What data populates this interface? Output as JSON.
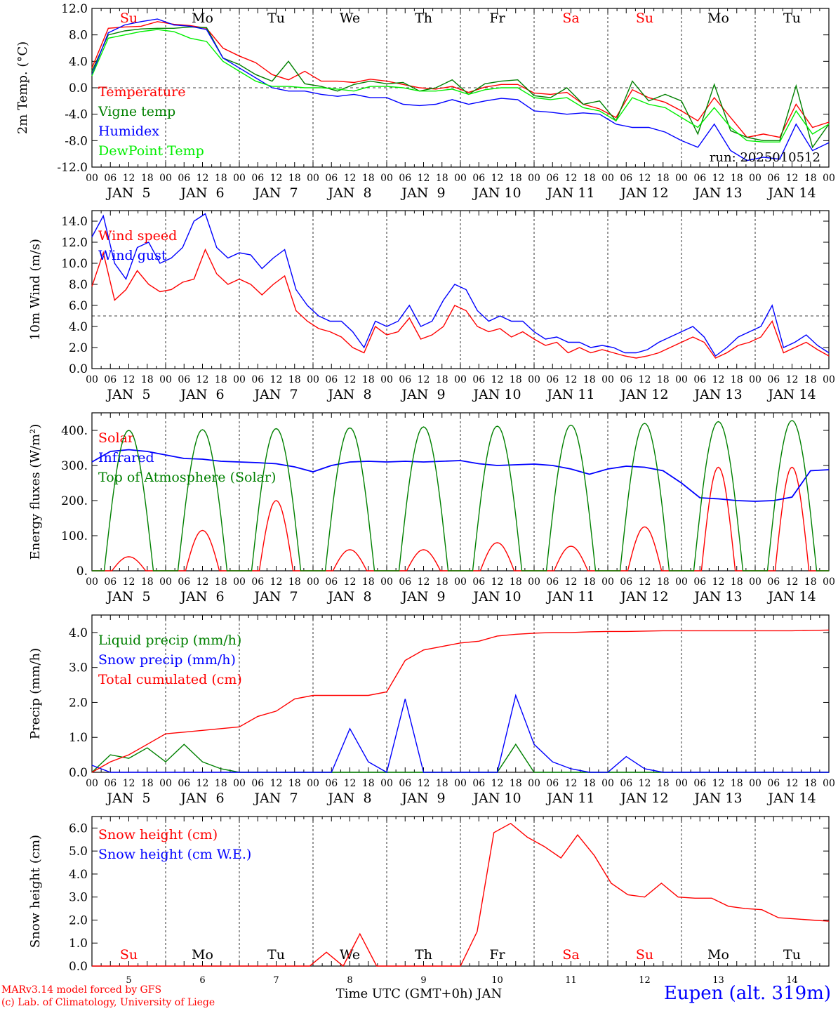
{
  "colors": {
    "red": "#ff0000",
    "green": "#008000",
    "blue": "#0000ff",
    "lime": "#00ee00",
    "black": "#000000"
  },
  "days_top": [
    "Su",
    "Mo",
    "Tu",
    "We",
    "Th",
    "Fr",
    "Sa",
    "Su",
    "Mo",
    "Tu"
  ],
  "days_top_colors": [
    "red",
    "black",
    "black",
    "black",
    "black",
    "black",
    "red",
    "red",
    "black",
    "black"
  ],
  "date_labels": [
    "JAN  5",
    "JAN  6",
    "JAN  7",
    "JAN  8",
    "JAN  9",
    "JAN 10",
    "JAN 11",
    "JAN 12",
    "JAN 13",
    "JAN 14"
  ],
  "hour_ticks": [
    "00",
    "06",
    "12",
    "18"
  ],
  "bottom_day_numbers": [
    "5",
    "6",
    "7",
    "8",
    "9",
    "10",
    "11",
    "12",
    "13",
    "14"
  ],
  "footer": {
    "credit1": "MARv3.14 model forced by GFS",
    "credit2": "(c) Lab. of Climatology, University of Liege",
    "x_title": "Time UTC (GMT+0h) JAN",
    "station": "Eupen (alt. 319m)"
  },
  "chart_data": [
    {
      "type": "line",
      "ylabel": "2m Temp. (°C)",
      "ylim": [
        -12,
        12
      ],
      "yticks": [
        "12.0",
        "8.0",
        "4.0",
        "0.0",
        "-4.0",
        "-8.0",
        "-12.0"
      ],
      "ref_line": 0,
      "run_label": "run: 2025010512",
      "x_hours_step": 6,
      "series": [
        {
          "name": "Temperature",
          "color": "red",
          "values": [
            3.0,
            9.0,
            9.2,
            9.3,
            10.0,
            9.6,
            9.4,
            9.0,
            6.0,
            4.8,
            3.8,
            2.0,
            1.2,
            2.5,
            1.0,
            1.0,
            0.8,
            1.3,
            1.0,
            0.5,
            0.0,
            -0.2,
            0.2,
            -0.7,
            0.1,
            0.5,
            0.5,
            -0.8,
            -1.0,
            -0.7,
            -2.5,
            -3.2,
            -4.5,
            -0.3,
            -1.5,
            -2.2,
            -3.5,
            -5.0,
            -1.5,
            -4.5,
            -7.5,
            -7.0,
            -7.5,
            -2.5,
            -6.0,
            -5.2
          ]
        },
        {
          "name": "Vigne temp",
          "color": "green",
          "values": [
            2.5,
            8.0,
            8.6,
            8.9,
            9.0,
            9.0,
            9.2,
            9.1,
            4.5,
            3.5,
            2.0,
            1.0,
            4.0,
            0.6,
            0.2,
            -0.5,
            0.5,
            1.0,
            0.6,
            0.8,
            -0.5,
            0.0,
            1.2,
            -1.0,
            0.6,
            1.0,
            1.2,
            -1.2,
            -1.5,
            0.0,
            -2.5,
            -2.0,
            -5.0,
            1.0,
            -2.0,
            -1.0,
            -2.0,
            -7.0,
            0.5,
            -6.5,
            -7.5,
            -8.0,
            -8.0,
            0.3,
            -9.0,
            -5.5
          ]
        },
        {
          "name": "Humidex",
          "color": "blue",
          "values": [
            2.0,
            8.3,
            9.5,
            10.0,
            10.4,
            9.5,
            9.3,
            8.8,
            4.5,
            3.0,
            1.5,
            0.0,
            -0.5,
            -0.5,
            -1.0,
            -1.3,
            -1.0,
            -1.5,
            -1.5,
            -2.5,
            -2.7,
            -2.5,
            -1.8,
            -2.5,
            -2.0,
            -1.6,
            -1.8,
            -3.5,
            -3.7,
            -4.0,
            -3.8,
            -4.0,
            -5.5,
            -6.0,
            -6.0,
            -6.7,
            -8.0,
            -9.0,
            -5.5,
            -9.5,
            -11.0,
            -10.5,
            -10.8,
            -5.5,
            -9.5,
            -8.3
          ]
        },
        {
          "name": "DewPoint Temp",
          "color": "lime",
          "values": [
            1.8,
            7.5,
            8.0,
            8.5,
            8.8,
            8.5,
            7.5,
            7.0,
            4.0,
            2.5,
            1.0,
            0.2,
            0.2,
            0.0,
            0.0,
            -0.2,
            -0.5,
            0.2,
            0.2,
            0.0,
            -0.5,
            -0.5,
            -0.2,
            -1.0,
            -0.3,
            0.0,
            0.0,
            -1.5,
            -1.8,
            -1.5,
            -3.0,
            -3.5,
            -5.0,
            -1.5,
            -2.5,
            -3.0,
            -4.5,
            -6.0,
            -3.0,
            -6.0,
            -8.0,
            -8.2,
            -8.2,
            -3.5,
            -7.0,
            -5.5
          ]
        }
      ]
    },
    {
      "type": "line",
      "ylabel": "10m Wind (m/s)",
      "ylim": [
        0,
        15
      ],
      "yticks": [
        "14.0",
        "12.0",
        "10.0",
        "8.0",
        "6.0",
        "4.0",
        "2.0",
        "0.0"
      ],
      "ref_line": 5,
      "x_hours_step": 6,
      "series": [
        {
          "name": "Wind speed",
          "color": "red",
          "values": [
            7.8,
            11.0,
            6.5,
            7.5,
            9.3,
            8.0,
            7.3,
            7.5,
            8.2,
            8.5,
            11.3,
            9.0,
            8.0,
            8.5,
            8.0,
            7.0,
            8.0,
            8.8,
            5.5,
            4.5,
            3.8,
            3.5,
            3.0,
            2.0,
            1.5,
            4.0,
            3.2,
            3.5,
            4.8,
            2.8,
            3.2,
            4.0,
            6.0,
            5.5,
            4.0,
            3.5,
            3.8,
            3.0,
            3.5,
            2.8,
            2.2,
            2.5,
            1.5,
            2.0,
            1.5,
            1.8,
            1.5,
            1.2,
            1.0,
            1.2,
            1.5,
            2.0,
            2.5,
            3.0,
            2.5,
            1.0,
            1.5,
            2.2,
            2.5,
            3.0,
            4.5,
            1.5,
            2.0,
            2.5,
            1.8,
            1.2
          ]
        },
        {
          "name": "Wind gust",
          "color": "blue",
          "values": [
            12.5,
            14.5,
            10.0,
            8.5,
            11.5,
            12.0,
            10.0,
            10.5,
            11.5,
            14.0,
            14.7,
            11.5,
            10.5,
            11.0,
            10.8,
            9.5,
            10.5,
            11.3,
            7.5,
            6.0,
            5.0,
            4.5,
            4.5,
            3.5,
            2.0,
            4.5,
            4.0,
            4.5,
            6.0,
            4.0,
            4.5,
            6.5,
            8.0,
            7.5,
            5.5,
            4.5,
            5.0,
            4.5,
            4.5,
            3.5,
            2.8,
            3.0,
            2.5,
            2.5,
            2.0,
            2.2,
            2.0,
            1.5,
            1.5,
            1.8,
            2.5,
            3.0,
            3.5,
            4.0,
            3.0,
            1.2,
            2.0,
            3.0,
            3.5,
            4.0,
            6.0,
            2.0,
            2.5,
            3.2,
            2.2,
            1.5
          ]
        }
      ]
    },
    {
      "type": "line",
      "ylabel": "Energy fluxes (W/m²)",
      "ylim": [
        0,
        450
      ],
      "yticks": [
        "400.",
        "300.",
        "200.",
        "100.",
        "0."
      ],
      "x_hours_step": 6,
      "series": [
        {
          "name": "Solar",
          "color": "red",
          "day_peaks": [
            40,
            115,
            200,
            60,
            60,
            80,
            70,
            125,
            295,
            295
          ]
        },
        {
          "name": "Infrared",
          "color": "blue",
          "values": [
            310,
            340,
            345,
            340,
            330,
            320,
            318,
            312,
            310,
            308,
            305,
            296,
            282,
            300,
            310,
            312,
            310,
            312,
            310,
            312,
            314,
            305,
            300,
            302,
            304,
            300,
            290,
            275,
            290,
            298,
            295,
            285,
            250,
            208,
            205,
            200,
            198,
            200,
            210,
            285,
            288
          ]
        },
        {
          "name": "Top of Atmosphere (Solar)",
          "color": "green",
          "day_peaks": [
            400,
            402,
            405,
            407,
            410,
            412,
            415,
            420,
            425,
            428
          ]
        }
      ]
    },
    {
      "type": "line",
      "ylabel": "Precip (mm/h)",
      "ylim": [
        0,
        4.5
      ],
      "yticks": [
        "4.0",
        "3.0",
        "2.0",
        "1.0",
        "0.0"
      ],
      "x_hours_step": 6,
      "series": [
        {
          "name": "Liquid precip (mm/h)",
          "color": "green",
          "values": [
            0,
            0.5,
            0.4,
            0.7,
            0.3,
            0.8,
            0.3,
            0.1,
            0,
            0,
            0,
            0,
            0,
            0,
            0,
            0,
            0,
            0,
            0,
            0,
            0,
            0,
            0,
            0.8,
            0,
            0,
            0,
            0,
            0,
            0,
            0,
            0,
            0,
            0,
            0,
            0,
            0,
            0,
            0,
            0,
            0
          ]
        },
        {
          "name": "Snow precip (mm/h)",
          "color": "blue",
          "values": [
            0.2,
            0,
            0,
            0,
            0,
            0,
            0,
            0,
            0,
            0,
            0,
            0,
            0,
            0,
            1.25,
            0.3,
            0,
            2.1,
            0,
            0,
            0,
            0,
            0,
            2.2,
            0.8,
            0.3,
            0.1,
            0,
            0,
            0.45,
            0.1,
            0,
            0,
            0,
            0,
            0,
            0,
            0,
            0,
            0,
            0
          ]
        },
        {
          "name": "Total cumulated (cm)",
          "color": "red",
          "values": [
            0,
            0.3,
            0.5,
            0.8,
            1.1,
            1.15,
            1.2,
            1.25,
            1.3,
            1.6,
            1.75,
            2.1,
            2.2,
            2.2,
            2.2,
            2.2,
            2.3,
            3.2,
            3.5,
            3.6,
            3.7,
            3.75,
            3.9,
            3.95,
            3.98,
            4.0,
            4.0,
            4.02,
            4.03,
            4.03,
            4.04,
            4.05,
            4.05,
            4.05,
            4.05,
            4.05,
            4.05,
            4.05,
            4.05,
            4.06,
            4.07
          ]
        }
      ]
    },
    {
      "type": "line",
      "ylabel": "Snow height (cm)",
      "ylim": [
        0,
        6.5
      ],
      "yticks": [
        "6.0",
        "5.0",
        "4.0",
        "3.0",
        "2.0",
        "1.0",
        "0.0"
      ],
      "x_hours_step": 6,
      "series": [
        {
          "name": "Snow height (cm)",
          "color": "red",
          "values": [
            0,
            0,
            0,
            0,
            0,
            0,
            0,
            0,
            0,
            0,
            0,
            0,
            0,
            0,
            0.6,
            0,
            1.4,
            0,
            0,
            0,
            0,
            0,
            0,
            1.5,
            5.8,
            6.2,
            5.6,
            5.2,
            4.7,
            5.7,
            4.8,
            3.6,
            3.1,
            3.0,
            3.6,
            3.0,
            2.95,
            2.95,
            2.6,
            2.5,
            2.45,
            2.1,
            2.05,
            2.0,
            1.95
          ]
        },
        {
          "name": "Snow height (cm W.E.)",
          "color": "blue",
          "values": []
        }
      ]
    }
  ]
}
